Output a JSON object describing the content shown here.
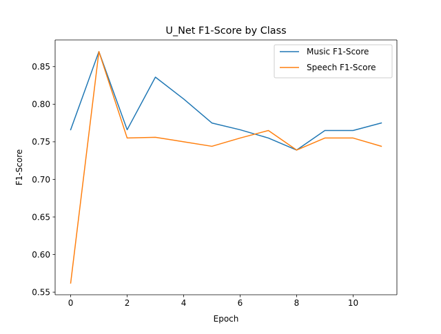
{
  "chart_data": {
    "type": "line",
    "title": "U_Net F1-Score by Class",
    "xlabel": "Epoch",
    "ylabel": "F1-Score",
    "x": [
      0,
      1,
      2,
      3,
      4,
      5,
      6,
      7,
      8,
      9,
      10,
      11
    ],
    "xlim": [
      -0.55,
      11.55
    ],
    "ylim": [
      0.5465,
      0.8855
    ],
    "xticks": [
      0,
      2,
      4,
      6,
      8,
      10
    ],
    "yticks": [
      0.55,
      0.6,
      0.65,
      0.7,
      0.75,
      0.8,
      0.85
    ],
    "xtick_labels": [
      "0",
      "2",
      "4",
      "6",
      "8",
      "10"
    ],
    "ytick_labels": [
      "0.55",
      "0.60",
      "0.65",
      "0.70",
      "0.75",
      "0.80",
      "0.85"
    ],
    "grid": false,
    "legend_position": "top-right",
    "series": [
      {
        "name": "Music F1-Score",
        "color": "#1f77b4",
        "values": [
          0.766,
          0.87,
          0.766,
          0.836,
          0.807,
          0.775,
          0.766,
          0.755,
          0.739,
          0.765,
          0.765,
          0.775
        ]
      },
      {
        "name": "Speech F1-Score",
        "color": "#ff7f0e",
        "values": [
          0.562,
          0.87,
          0.755,
          0.756,
          0.75,
          0.744,
          0.755,
          0.765,
          0.739,
          0.755,
          0.755,
          0.744
        ]
      }
    ]
  }
}
